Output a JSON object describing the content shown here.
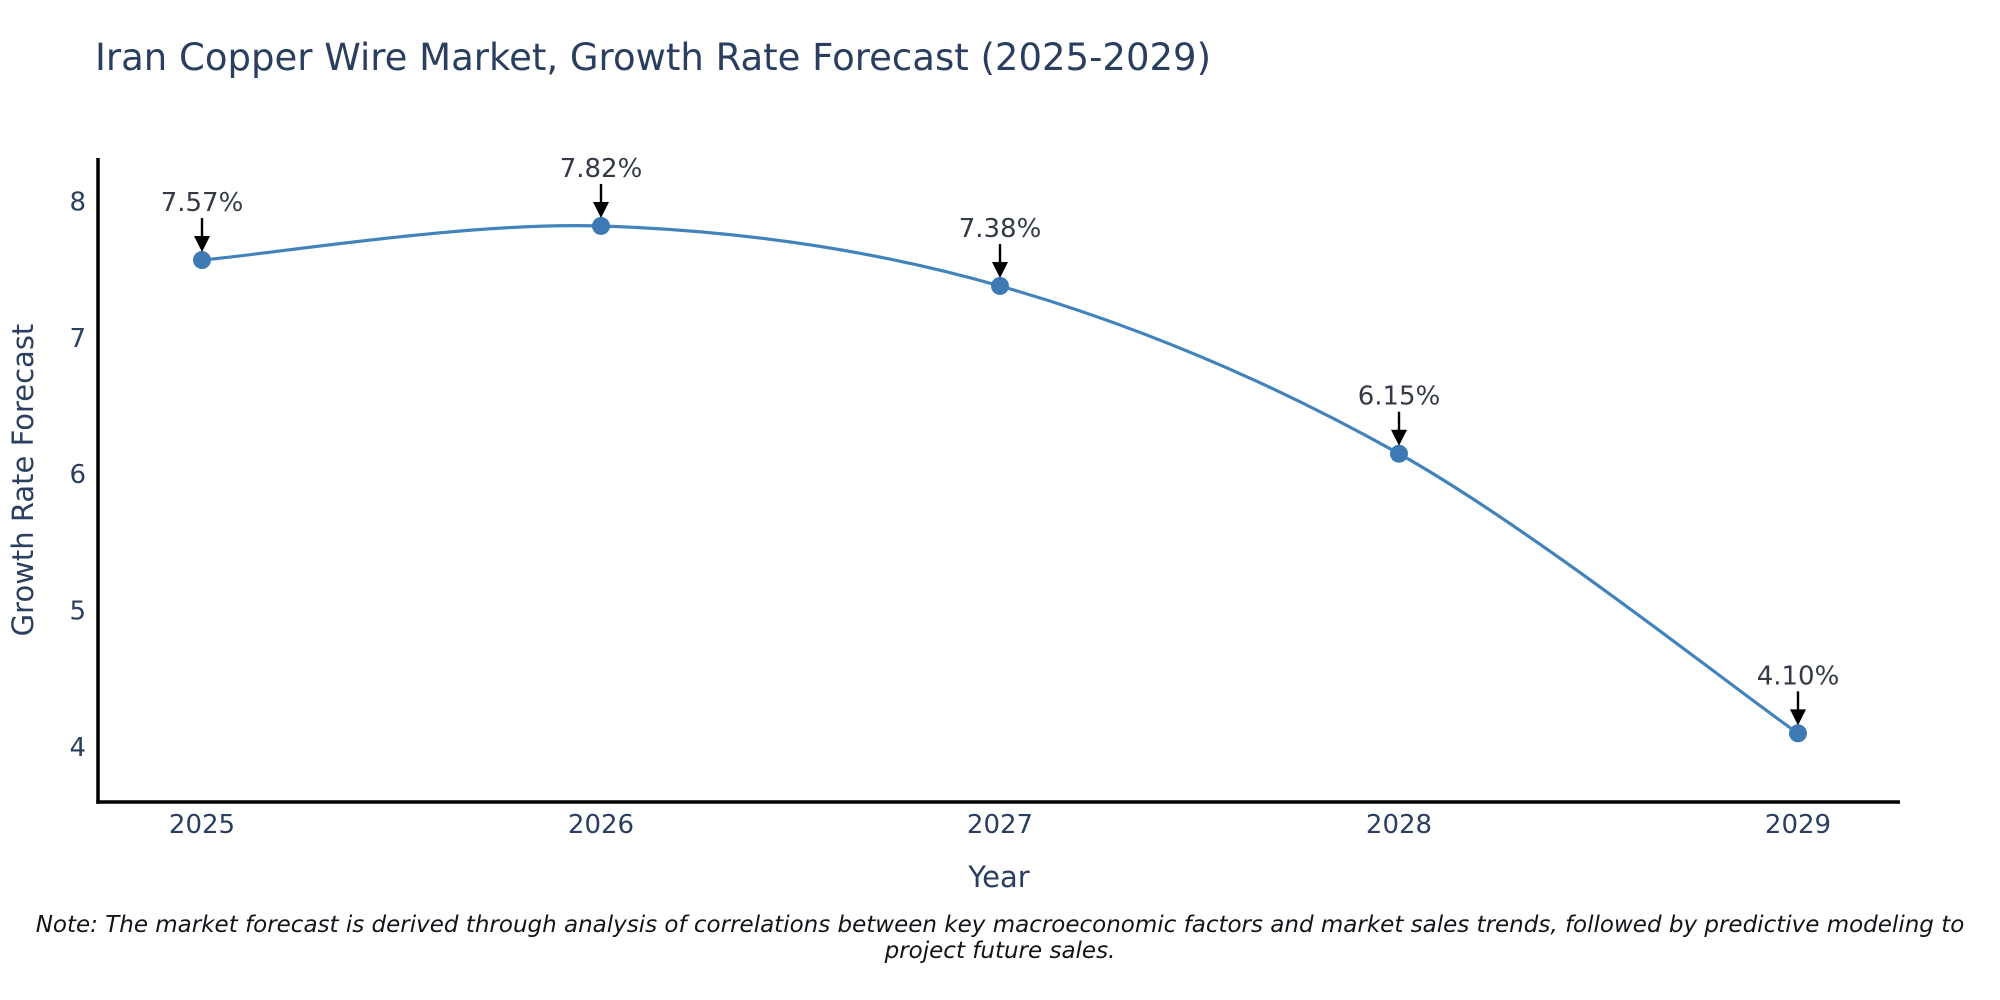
{
  "title": "Iran Copper Wire Market, Growth Rate Forecast (2025-2029)",
  "note": "Note: The market forecast is derived through analysis of correlations between key macroeconomic factors and market sales trends, followed by predictive modeling to project future sales.",
  "chart_data": {
    "type": "line",
    "title": "Iran Copper Wire Market, Growth Rate Forecast (2025-2029)",
    "xlabel": "Year",
    "ylabel": "Growth Rate Forecast",
    "x": [
      2025,
      2026,
      2027,
      2028,
      2029
    ],
    "x_tick_labels": [
      "2025",
      "2026",
      "2027",
      "2028",
      "2029"
    ],
    "series": [
      {
        "name": "Growth Rate Forecast",
        "values": [
          7.57,
          7.82,
          7.38,
          6.15,
          4.1
        ]
      }
    ],
    "point_labels": [
      "7.57%",
      "7.82%",
      "7.38%",
      "6.15%",
      "4.10%"
    ],
    "yticks": [
      4,
      5,
      6,
      7,
      8
    ],
    "ylim": [
      3.6,
      8.3
    ],
    "line_shape": "spline",
    "grid": false,
    "legend": "none",
    "colors": {
      "line": "#4383bb",
      "marker": "#3d7ab3",
      "axis": "#000000",
      "text": "#2a3f5f",
      "annotation_text": "#333a45",
      "arrow": "#000000"
    }
  }
}
